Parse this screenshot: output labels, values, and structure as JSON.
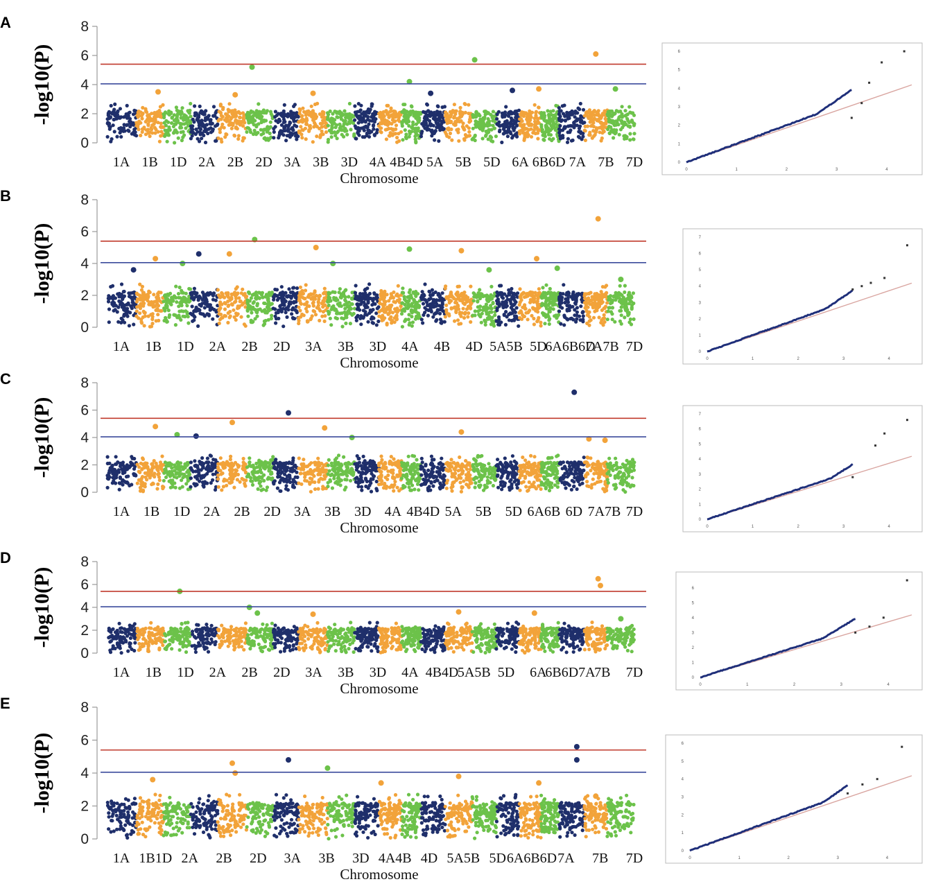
{
  "figure": {
    "description_free": true
  },
  "chart_data": [
    {
      "panel": "A",
      "type": "scatter",
      "subtype": "manhattan",
      "ylabel": "-log10(P)",
      "xlabel": "Chromosome",
      "ylim": [
        0,
        8
      ],
      "yticks": [
        0,
        2,
        4,
        6,
        8
      ],
      "thresholds": [
        {
          "value": 5.4,
          "color": "#c0392b"
        },
        {
          "value": 4.05,
          "color": "#3a4a9c"
        }
      ],
      "tick_labels": [
        "1A",
        "1B",
        "1D",
        "2A",
        "2B",
        "2D",
        "3A",
        "3B",
        "3D",
        "4A",
        "4B4D",
        "5A",
        "5B",
        "5D",
        "6A",
        "6B6D",
        "7A",
        "7B",
        "7D"
      ],
      "chromosomes": [
        "1A",
        "1B",
        "1D",
        "2A",
        "2B",
        "2D",
        "3A",
        "3B",
        "3D",
        "4A",
        "4B",
        "4D",
        "5A",
        "5B",
        "5D",
        "6A",
        "6B",
        "6D",
        "7A",
        "7B",
        "7D"
      ],
      "peaks": [
        [
          1.8,
          3.5
        ],
        [
          4.6,
          3.3
        ],
        [
          5.2,
          5.2
        ],
        [
          7.5,
          3.4
        ],
        [
          11.4,
          4.2
        ],
        [
          12.4,
          3.4
        ],
        [
          14.1,
          5.7
        ],
        [
          15.7,
          3.6
        ],
        [
          16.9,
          3.7
        ],
        [
          19.5,
          6.1
        ],
        [
          20.3,
          3.7
        ]
      ],
      "qq": {
        "xlim": [
          0,
          4.5
        ],
        "ylim": [
          0,
          6
        ],
        "xticks": [
          0,
          1,
          2,
          3,
          4
        ],
        "yticks": [
          0,
          1,
          2,
          3,
          4,
          5,
          6
        ],
        "deviate_at": 2.6,
        "top": [
          [
            3.3,
            2.4
          ],
          [
            3.5,
            3.2
          ],
          [
            3.65,
            4.3
          ],
          [
            3.9,
            5.4
          ],
          [
            4.35,
            6.0
          ]
        ]
      }
    },
    {
      "panel": "B",
      "type": "scatter",
      "subtype": "manhattan",
      "ylabel": "-log10(P)",
      "xlabel": "Chromosome",
      "ylim": [
        0,
        8
      ],
      "yticks": [
        0,
        2,
        4,
        6,
        8
      ],
      "thresholds": [
        {
          "value": 5.4,
          "color": "#c0392b"
        },
        {
          "value": 4.05,
          "color": "#3a4a9c"
        }
      ],
      "tick_labels": [
        "1A",
        "1B",
        "1D",
        "2A",
        "2B",
        "2D",
        "3A",
        "3B",
        "3D",
        "4A",
        "4B",
        "4D",
        "5A5B",
        "5D",
        "6A6B6D",
        "7A7B",
        "7D"
      ],
      "chromosomes": [
        "1A",
        "1B",
        "1D",
        "2A",
        "2B",
        "2D",
        "3A",
        "3B",
        "3D",
        "4A",
        "4B",
        "4D",
        "5A",
        "5B",
        "5D",
        "6A",
        "6B",
        "6D",
        "7A",
        "7B",
        "7D"
      ],
      "peaks": [
        [
          0.9,
          3.6
        ],
        [
          1.7,
          4.3
        ],
        [
          2.7,
          4.0
        ],
        [
          3.3,
          4.6
        ],
        [
          4.4,
          4.6
        ],
        [
          5.3,
          5.5
        ],
        [
          7.6,
          5.0
        ],
        [
          8.2,
          4.0
        ],
        [
          11.4,
          4.9
        ],
        [
          13.6,
          4.8
        ],
        [
          14.7,
          3.6
        ],
        [
          16.8,
          4.3
        ],
        [
          17.9,
          3.7
        ],
        [
          19.6,
          6.8
        ],
        [
          20.5,
          3.0
        ]
      ],
      "qq": {
        "xlim": [
          0,
          4.5
        ],
        "ylim": [
          0,
          7
        ],
        "xticks": [
          0,
          1,
          2,
          3,
          4
        ],
        "yticks": [
          0,
          1,
          2,
          3,
          4,
          5,
          6,
          7
        ],
        "deviate_at": 2.6,
        "top": [
          [
            3.2,
            3.8
          ],
          [
            3.4,
            4.0
          ],
          [
            3.6,
            4.2
          ],
          [
            3.9,
            4.5
          ],
          [
            4.4,
            6.5
          ]
        ]
      }
    },
    {
      "panel": "C",
      "type": "scatter",
      "subtype": "manhattan",
      "ylabel": "-log10(P)",
      "xlabel": "Chromosome",
      "ylim": [
        0,
        8
      ],
      "yticks": [
        0,
        2,
        4,
        6,
        8
      ],
      "thresholds": [
        {
          "value": 5.4,
          "color": "#c0392b"
        },
        {
          "value": 4.05,
          "color": "#3a4a9c"
        }
      ],
      "tick_labels": [
        "1A",
        "1B",
        "1D",
        "2A",
        "2B",
        "2D",
        "3A",
        "3B",
        "3D",
        "4A",
        "4B4D",
        "5A",
        "5B",
        "5D",
        "6A6B",
        "6D",
        "7A7B",
        "7D"
      ],
      "chromosomes": [
        "1A",
        "1B",
        "1D",
        "2A",
        "2B",
        "2D",
        "3A",
        "3B",
        "3D",
        "4A",
        "4B",
        "4D",
        "5A",
        "5B",
        "5D",
        "6A",
        "6B",
        "6D",
        "7A",
        "7B",
        "7D"
      ],
      "peaks": [
        [
          1.7,
          4.8
        ],
        [
          2.5,
          4.2
        ],
        [
          3.2,
          4.1
        ],
        [
          4.5,
          5.1
        ],
        [
          6.6,
          5.8
        ],
        [
          7.9,
          4.7
        ],
        [
          8.9,
          4.0
        ],
        [
          13.6,
          4.4
        ],
        [
          18.6,
          7.3
        ],
        [
          19.2,
          3.9
        ],
        [
          19.9,
          3.8
        ]
      ],
      "qq": {
        "xlim": [
          0,
          4.5
        ],
        "ylim": [
          0,
          7
        ],
        "xticks": [
          0,
          1,
          2,
          3,
          4
        ],
        "yticks": [
          0,
          1,
          2,
          3,
          4,
          5,
          6,
          7
        ],
        "deviate_at": 2.7,
        "top": [
          [
            3.2,
            2.8
          ],
          [
            3.7,
            4.9
          ],
          [
            3.9,
            5.7
          ],
          [
            4.4,
            6.6
          ]
        ]
      }
    },
    {
      "panel": "D",
      "type": "scatter",
      "subtype": "manhattan",
      "ylabel": "-log10(P)",
      "xlabel": "Chromosome",
      "ylim": [
        0,
        8
      ],
      "yticks": [
        0,
        2,
        4,
        6,
        8
      ],
      "thresholds": [
        {
          "value": 5.4,
          "color": "#c0392b"
        },
        {
          "value": 4.05,
          "color": "#3a4a9c"
        }
      ],
      "tick_labels": [
        "1A",
        "1B",
        "1D",
        "2A",
        "2B",
        "2D",
        "3A",
        "3B",
        "3D",
        "4A",
        "4B4D",
        "5A5B",
        "5D",
        "6A",
        "6B6D7A",
        "7B",
        "7D"
      ],
      "chromosomes": [
        "1A",
        "1B",
        "1D",
        "2A",
        "2B",
        "2D",
        "3A",
        "3B",
        "3D",
        "4A",
        "4B",
        "4D",
        "5A",
        "5B",
        "5D",
        "6A",
        "6B",
        "6D",
        "7A",
        "7B",
        "7D"
      ],
      "peaks": [
        [
          2.6,
          5.4
        ],
        [
          5.1,
          4.0
        ],
        [
          5.4,
          3.5
        ],
        [
          7.5,
          3.4
        ],
        [
          13.5,
          3.6
        ],
        [
          16.7,
          3.5
        ],
        [
          19.6,
          6.5
        ],
        [
          19.7,
          5.9
        ],
        [
          20.5,
          3.0
        ]
      ],
      "qq": {
        "xlim": [
          0,
          4.5
        ],
        "ylim": [
          0,
          6.5
        ],
        "xticks": [
          0,
          1,
          2,
          3,
          4
        ],
        "yticks": [
          0,
          1,
          2,
          3,
          4,
          5,
          6
        ],
        "deviate_at": 2.6,
        "top": [
          [
            3.3,
            3.0
          ],
          [
            3.6,
            3.4
          ],
          [
            3.9,
            4.0
          ],
          [
            4.4,
            6.5
          ]
        ]
      }
    },
    {
      "panel": "E",
      "type": "scatter",
      "subtype": "manhattan",
      "ylabel": "-log10(P)",
      "xlabel": "Chromosome",
      "ylim": [
        0,
        8
      ],
      "yticks": [
        0,
        2,
        4,
        6,
        8
      ],
      "thresholds": [
        {
          "value": 5.4,
          "color": "#c0392b"
        },
        {
          "value": 4.05,
          "color": "#3a4a9c"
        }
      ],
      "tick_labels": [
        "1A",
        "1B1D",
        "2A",
        "2B",
        "2D",
        "3A",
        "3B",
        "3D",
        "4A4B",
        "4D",
        "5A5B",
        "5D",
        "6A6B6D",
        "7A",
        "7B",
        "7D"
      ],
      "chromosomes": [
        "1A",
        "1B",
        "1D",
        "2A",
        "2B",
        "2D",
        "3A",
        "3B",
        "3D",
        "4A",
        "4B",
        "4D",
        "5A",
        "5B",
        "5D",
        "6A",
        "6B",
        "6D",
        "7A",
        "7B",
        "7D"
      ],
      "peaks": [
        [
          1.6,
          3.6
        ],
        [
          4.5,
          4.6
        ],
        [
          4.6,
          4.0
        ],
        [
          6.6,
          4.8
        ],
        [
          8.0,
          4.3
        ],
        [
          10.1,
          3.4
        ],
        [
          13.5,
          3.8
        ],
        [
          16.9,
          3.4
        ],
        [
          18.7,
          5.6
        ],
        [
          18.7,
          4.8
        ],
        [
          19.5,
          2.6
        ]
      ],
      "qq": {
        "xlim": [
          0,
          4.5
        ],
        "ylim": [
          0,
          6
        ],
        "xticks": [
          0,
          1,
          2,
          3,
          4
        ],
        "yticks": [
          0,
          1,
          2,
          3,
          4,
          5,
          6
        ],
        "deviate_at": 2.7,
        "top": [
          [
            3.2,
            3.2
          ],
          [
            3.5,
            3.7
          ],
          [
            3.8,
            4.0
          ],
          [
            4.3,
            5.8
          ]
        ]
      }
    }
  ],
  "colors": {
    "navy": "#1f2f6b",
    "orange": "#f2a33a",
    "green": "#6cc24a",
    "red_line": "#c0392b",
    "blue_line": "#3a4a9c",
    "qq_points": "#1f2f7a",
    "qq_line": "#d9a5a0"
  }
}
